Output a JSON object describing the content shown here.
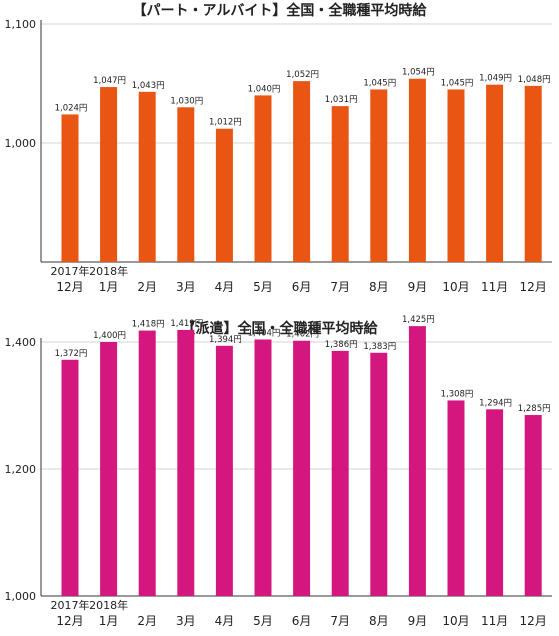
{
  "chart_data": [
    {
      "type": "bar",
      "title": "【パート・アルバイト】全国・全職種平均時給",
      "categories": [
        "12月",
        "1月",
        "2月",
        "3月",
        "4月",
        "5月",
        "6月",
        "7月",
        "8月",
        "9月",
        "10月",
        "11月",
        "12月"
      ],
      "year_labels": [
        "2017年",
        "2018年",
        "",
        "",
        "",
        "",
        "",
        "",
        "",
        "",
        "",
        "",
        ""
      ],
      "values": [
        1024,
        1047,
        1043,
        1030,
        1012,
        1040,
        1052,
        1031,
        1045,
        1054,
        1045,
        1049,
        1048
      ],
      "value_labels": [
        "1,024円",
        "1,047円",
        "1,043円",
        "1,030円",
        "1,012円",
        "1,040円",
        "1,052円",
        "1,031円",
        "1,045円",
        "1,054円",
        "1,045円",
        "1,049円",
        "1,048円"
      ],
      "ylim": [
        900,
        1100
      ],
      "yticks": [
        {
          "value": 1000,
          "label": "1,000"
        },
        {
          "value": 1100,
          "label": "1,100"
        }
      ],
      "bar_color": "#e95513",
      "grid": true
    },
    {
      "type": "bar",
      "title": "【派遣】全国・全職種平均時給",
      "categories": [
        "12月",
        "1月",
        "2月",
        "3月",
        "4月",
        "5月",
        "6月",
        "7月",
        "8月",
        "9月",
        "10月",
        "11月",
        "12月"
      ],
      "year_labels": [
        "2017年",
        "2018年",
        "",
        "",
        "",
        "",
        "",
        "",
        "",
        "",
        "",
        "",
        ""
      ],
      "values": [
        1372,
        1400,
        1418,
        1419,
        1394,
        1404,
        1402,
        1386,
        1383,
        1425,
        1308,
        1294,
        1285
      ],
      "value_labels": [
        "1,372円",
        "1,400円",
        "1,418円",
        "1,419円",
        "1,394円",
        "1,404円",
        "1,402円",
        "1,386円",
        "1,383円",
        "1,425円",
        "1,308円",
        "1,294円",
        "1,285円"
      ],
      "ylim": [
        1000,
        1400
      ],
      "yticks": [
        {
          "value": 1000,
          "label": "1,000"
        },
        {
          "value": 1200,
          "label": "1,200"
        },
        {
          "value": 1400,
          "label": "1,400"
        }
      ],
      "bar_color": "#d4177f",
      "grid": true
    }
  ]
}
